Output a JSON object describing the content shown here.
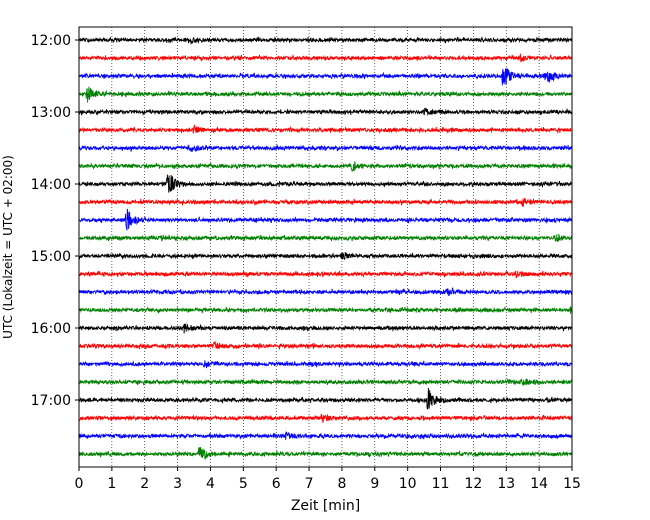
{
  "chart_data": {
    "type": "line",
    "title": "",
    "xlabel": "Zeit  [min]",
    "ylabel": "UTC (Lokalzeit = UTC + 02:00)",
    "xlim": [
      0,
      15
    ],
    "x_ticks": [
      0,
      1,
      2,
      3,
      4,
      5,
      6,
      7,
      8,
      9,
      10,
      11,
      12,
      13,
      14,
      15
    ],
    "y_tick_labels": [
      "12:00",
      "13:00",
      "14:00",
      "15:00",
      "16:00",
      "17:00"
    ],
    "grid": "vertical dotted",
    "series_colors": [
      "#000000",
      "#ff0000",
      "#0000ff",
      "#008000"
    ],
    "series": [
      {
        "start": "12:00",
        "events": [
          {
            "t": 3.4,
            "a": 0.25
          }
        ]
      },
      {
        "start": "12:15",
        "events": [
          {
            "t": 13.4,
            "a": 0.25
          }
        ]
      },
      {
        "start": "12:30",
        "events": [
          {
            "t": 12.9,
            "a": 1.0
          },
          {
            "t": 14.2,
            "a": 0.8
          }
        ]
      },
      {
        "start": "12:45",
        "events": [
          {
            "t": 0.25,
            "a": 0.6
          }
        ]
      },
      {
        "start": "13:00",
        "events": [
          {
            "t": 10.5,
            "a": 0.3
          }
        ]
      },
      {
        "start": "13:15",
        "events": [
          {
            "t": 3.5,
            "a": 0.25
          }
        ]
      },
      {
        "start": "13:30",
        "events": [
          {
            "t": 3.4,
            "a": 0.25
          }
        ]
      },
      {
        "start": "13:45",
        "events": [
          {
            "t": 8.3,
            "a": 0.3
          }
        ]
      },
      {
        "start": "14:00",
        "events": [
          {
            "t": 2.7,
            "a": 1.0
          }
        ]
      },
      {
        "start": "14:15",
        "events": [
          {
            "t": 13.5,
            "a": 0.3
          }
        ]
      },
      {
        "start": "14:30",
        "events": [
          {
            "t": 1.45,
            "a": 1.0
          }
        ]
      },
      {
        "start": "14:45",
        "events": [
          {
            "t": 14.5,
            "a": 0.25
          }
        ]
      },
      {
        "start": "15:00",
        "events": [
          {
            "t": 8.0,
            "a": 0.25
          }
        ]
      },
      {
        "start": "15:15",
        "events": [
          {
            "t": 13.3,
            "a": 0.25
          }
        ]
      },
      {
        "start": "15:30",
        "events": [
          {
            "t": 11.2,
            "a": 0.25
          }
        ]
      },
      {
        "start": "15:45",
        "events": [
          {
            "t": 14.95,
            "a": 0.3
          }
        ]
      },
      {
        "start": "16:00",
        "events": [
          {
            "t": 3.2,
            "a": 0.3
          }
        ]
      },
      {
        "start": "16:15",
        "events": [
          {
            "t": 4.1,
            "a": 0.25
          }
        ]
      },
      {
        "start": "16:30",
        "events": [
          {
            "t": 3.8,
            "a": 0.25
          }
        ]
      },
      {
        "start": "16:45",
        "events": [
          {
            "t": 13.5,
            "a": 0.25
          }
        ]
      },
      {
        "start": "17:00",
        "events": [
          {
            "t": 10.6,
            "a": 1.0
          }
        ]
      },
      {
        "start": "17:15",
        "events": [
          {
            "t": 7.4,
            "a": 0.25
          }
        ]
      },
      {
        "start": "17:30",
        "events": [
          {
            "t": 6.3,
            "a": 0.25
          }
        ]
      },
      {
        "start": "17:45",
        "events": [
          {
            "t": 3.65,
            "a": 0.6
          }
        ]
      }
    ]
  }
}
